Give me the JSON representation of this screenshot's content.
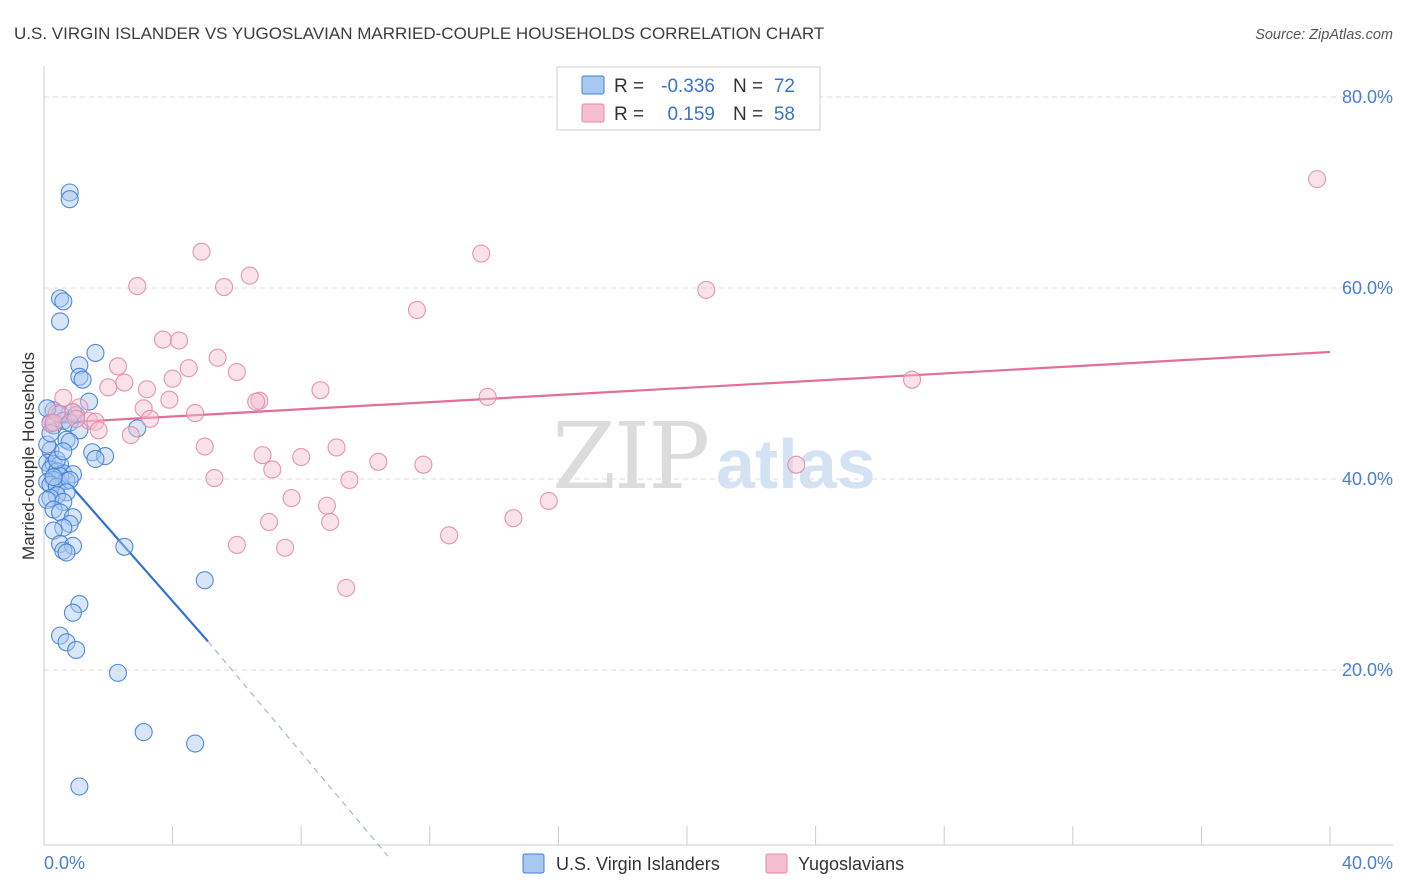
{
  "title": "U.S. VIRGIN ISLANDER VS YUGOSLAVIAN MARRIED-COUPLE HOUSEHOLDS CORRELATION CHART",
  "source": "Source: ZipAtlas.com",
  "watermark": {
    "zip": "ZIP",
    "atlas": "atlas"
  },
  "colors": {
    "blue_fill": "#a9c8f0",
    "blue_stroke": "#3f7fd8",
    "blue_line": "#2f72d6",
    "pink_fill": "#f5bfd0",
    "pink_stroke": "#e48aa7",
    "pink_line": "#e0709a",
    "grid": "#dddddd",
    "tick_text": "#4a7fcf"
  },
  "stats_box": {
    "rows": [
      {
        "r_label": "R =",
        "r_value": "-0.336",
        "n_label": "N =",
        "n_value": "72"
      },
      {
        "r_label": "R =",
        "r_value": "0.159",
        "n_label": "N =",
        "n_value": "58"
      }
    ]
  },
  "legend": {
    "items": [
      {
        "label": "U.S. Virgin Islanders"
      },
      {
        "label": "Yugoslavians"
      }
    ]
  },
  "chart_data": {
    "type": "scatter",
    "title": "U.S. VIRGIN ISLANDER VS YUGOSLAVIAN MARRIED-COUPLE HOUSEHOLDS CORRELATION CHART",
    "xlabel": "",
    "ylabel": "Married-couple Households",
    "xlim": [
      0,
      40
    ],
    "ylim": [
      0,
      80
    ],
    "x_tick_labels": [
      {
        "value": 0,
        "label": "0.0%"
      },
      {
        "value": 40,
        "label": "40.0%"
      }
    ],
    "y_tick_labels": [
      {
        "value": 20,
        "label": "20.0%"
      },
      {
        "value": 40,
        "label": "40.0%"
      },
      {
        "value": 60,
        "label": "60.0%"
      },
      {
        "value": 80,
        "label": "80.0%"
      }
    ],
    "x_minor_ticks": [
      0,
      4,
      8,
      12,
      16,
      20,
      24,
      28,
      32,
      36,
      40
    ],
    "grid": true,
    "series": [
      {
        "name": "U.S. Virgin Islanders",
        "R": -0.336,
        "N": 72,
        "trend": {
          "x0": 0,
          "y0": 42.5,
          "x1": 5.1,
          "y1": 23.0,
          "dash_to_x": 10.7,
          "dash_to_y": 0.5
        },
        "points": [
          [
            0.8,
            70.0
          ],
          [
            0.8,
            69.3
          ],
          [
            0.5,
            58.9
          ],
          [
            0.6,
            58.6
          ],
          [
            0.5,
            56.5
          ],
          [
            1.6,
            53.2
          ],
          [
            1.1,
            51.9
          ],
          [
            1.1,
            50.7
          ],
          [
            1.2,
            50.4
          ],
          [
            1.4,
            48.1
          ],
          [
            0.3,
            47.2
          ],
          [
            0.5,
            46.8
          ],
          [
            0.9,
            47.0
          ],
          [
            1.0,
            46.7
          ],
          [
            0.2,
            45.9
          ],
          [
            0.3,
            45.6
          ],
          [
            0.6,
            46.1
          ],
          [
            0.8,
            45.9
          ],
          [
            2.9,
            45.3
          ],
          [
            1.1,
            45.1
          ],
          [
            0.7,
            44.1
          ],
          [
            0.2,
            43.0
          ],
          [
            1.5,
            42.8
          ],
          [
            1.9,
            42.4
          ],
          [
            1.6,
            42.1
          ],
          [
            0.1,
            41.7
          ],
          [
            0.3,
            41.6
          ],
          [
            0.5,
            41.5
          ],
          [
            0.2,
            41.0
          ],
          [
            0.4,
            40.8
          ],
          [
            0.6,
            40.6
          ],
          [
            0.9,
            40.5
          ],
          [
            0.5,
            40.3
          ],
          [
            0.3,
            39.9
          ],
          [
            0.1,
            39.7
          ],
          [
            0.7,
            39.8
          ],
          [
            0.2,
            39.4
          ],
          [
            0.4,
            39.2
          ],
          [
            0.8,
            39.9
          ],
          [
            0.7,
            38.6
          ],
          [
            0.4,
            38.3
          ],
          [
            0.2,
            38.0
          ],
          [
            0.1,
            37.8
          ],
          [
            0.6,
            37.6
          ],
          [
            0.3,
            36.8
          ],
          [
            0.5,
            36.5
          ],
          [
            0.9,
            36.0
          ],
          [
            0.8,
            35.3
          ],
          [
            0.6,
            34.9
          ],
          [
            0.3,
            34.6
          ],
          [
            0.5,
            33.2
          ],
          [
            0.9,
            33.0
          ],
          [
            0.6,
            32.5
          ],
          [
            0.7,
            32.3
          ],
          [
            2.5,
            32.9
          ],
          [
            5.0,
            29.4
          ],
          [
            1.1,
            26.9
          ],
          [
            0.9,
            26.0
          ],
          [
            0.5,
            23.6
          ],
          [
            0.7,
            22.9
          ],
          [
            1.0,
            22.1
          ],
          [
            2.3,
            19.7
          ],
          [
            3.1,
            13.5
          ],
          [
            4.7,
            12.3
          ],
          [
            1.1,
            7.8
          ],
          [
            0.1,
            43.6
          ],
          [
            0.4,
            42.0
          ],
          [
            0.2,
            44.8
          ],
          [
            0.8,
            43.9
          ],
          [
            0.6,
            42.9
          ],
          [
            0.1,
            47.4
          ],
          [
            0.3,
            40.2
          ]
        ]
      },
      {
        "name": "Yugoslavians",
        "R": 0.159,
        "N": 58,
        "trend": {
          "x0": 0,
          "y0": 45.8,
          "x1": 40,
          "y1": 53.3
        },
        "points": [
          [
            39.6,
            71.4
          ],
          [
            4.9,
            63.8
          ],
          [
            13.6,
            63.6
          ],
          [
            6.4,
            61.3
          ],
          [
            2.9,
            60.2
          ],
          [
            5.6,
            60.1
          ],
          [
            20.6,
            59.8
          ],
          [
            11.6,
            57.7
          ],
          [
            3.7,
            54.6
          ],
          [
            4.2,
            54.5
          ],
          [
            5.4,
            52.7
          ],
          [
            2.3,
            51.8
          ],
          [
            4.5,
            51.6
          ],
          [
            6.0,
            51.2
          ],
          [
            4.0,
            50.5
          ],
          [
            27.0,
            50.4
          ],
          [
            2.5,
            50.1
          ],
          [
            2.0,
            49.6
          ],
          [
            3.2,
            49.4
          ],
          [
            8.6,
            49.3
          ],
          [
            13.8,
            48.6
          ],
          [
            3.9,
            48.3
          ],
          [
            6.7,
            48.2
          ],
          [
            6.6,
            48.1
          ],
          [
            0.6,
            48.5
          ],
          [
            3.1,
            47.4
          ],
          [
            1.1,
            47.5
          ],
          [
            0.9,
            47.0
          ],
          [
            4.7,
            46.9
          ],
          [
            3.3,
            46.3
          ],
          [
            1.4,
            46.1
          ],
          [
            0.2,
            45.8
          ],
          [
            1.6,
            46.0
          ],
          [
            1.7,
            45.1
          ],
          [
            2.7,
            44.6
          ],
          [
            5.0,
            43.4
          ],
          [
            9.1,
            43.3
          ],
          [
            6.8,
            42.5
          ],
          [
            8.0,
            42.3
          ],
          [
            10.4,
            41.8
          ],
          [
            11.8,
            41.5
          ],
          [
            23.4,
            41.5
          ],
          [
            7.1,
            41.0
          ],
          [
            5.3,
            40.1
          ],
          [
            9.5,
            39.9
          ],
          [
            7.7,
            38.0
          ],
          [
            15.7,
            37.7
          ],
          [
            8.8,
            37.2
          ],
          [
            14.6,
            35.9
          ],
          [
            7.0,
            35.5
          ],
          [
            8.9,
            35.5
          ],
          [
            12.6,
            34.1
          ],
          [
            6.0,
            33.1
          ],
          [
            7.5,
            32.8
          ],
          [
            9.4,
            28.6
          ],
          [
            0.4,
            46.9
          ],
          [
            1.0,
            46.3
          ],
          [
            0.3,
            45.9
          ]
        ]
      }
    ]
  }
}
